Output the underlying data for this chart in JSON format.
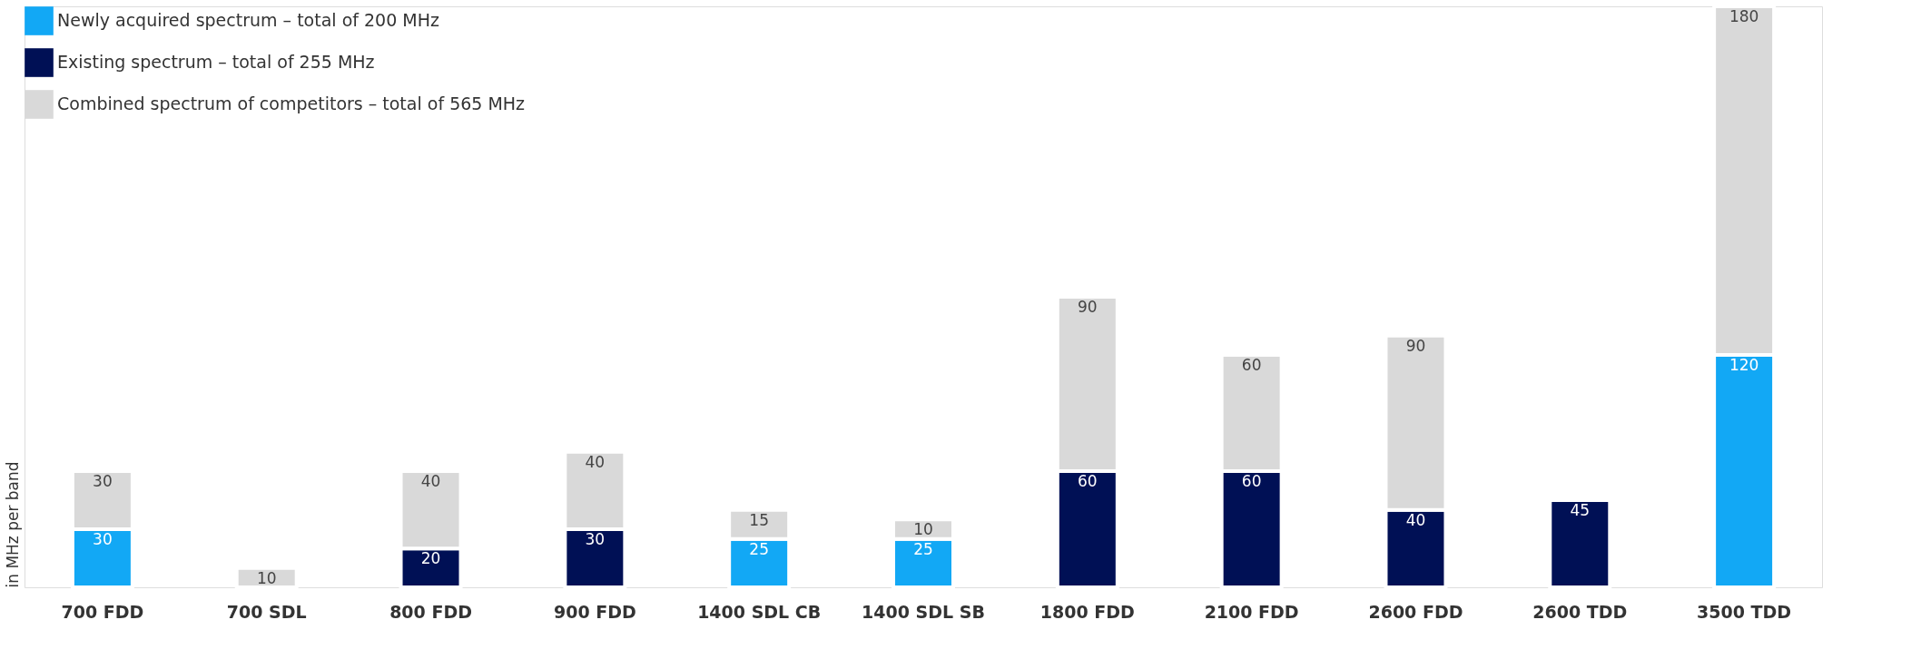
{
  "chart_data": {
    "type": "bar",
    "stacked": true,
    "data_labels": true,
    "ylabel": "in MHz per band",
    "legend": "top left",
    "grid": false,
    "tick_labels": "x",
    "categories": [
      "700 FDD",
      "700 SDL",
      "800 FDD",
      "900 FDD",
      "1400 SDL CB",
      "1400 SDL SB",
      "1800 FDD",
      "2100 FDD",
      "2600 FDD",
      "2600 TDD",
      "3500 TDD"
    ],
    "series": [
      {
        "name": "Newly acquired spectrum – total of 200 MHz",
        "color": "#12a8f5",
        "values": [
          30,
          null,
          null,
          null,
          25,
          25,
          null,
          null,
          null,
          null,
          120
        ]
      },
      {
        "name": "Existing spectrum – total of 255 MHz",
        "color": "#001055",
        "values": [
          null,
          null,
          20,
          30,
          null,
          null,
          60,
          60,
          40,
          45,
          null
        ]
      },
      {
        "name": "Combined spectrum of competitors – total of 565 MHz",
        "color": "#d9d9d9",
        "values": [
          30,
          10,
          40,
          40,
          15,
          10,
          90,
          60,
          90,
          null,
          180
        ]
      }
    ]
  }
}
